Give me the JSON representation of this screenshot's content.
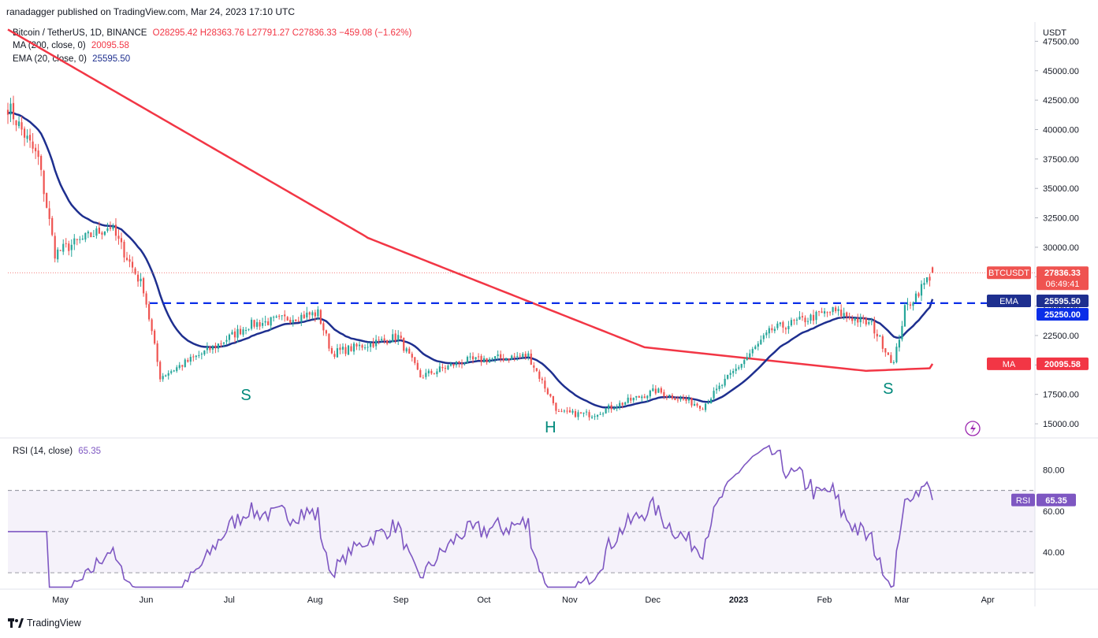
{
  "header": {
    "published": "ranadagger published on TradingView.com, Mar 24, 2023 17:10 UTC"
  },
  "legend": {
    "symbol": "Bitcoin / TetherUS, 1D, BINANCE",
    "ohlc": "O28295.42  H28363.76  L27791.27  C27836.33  −459.08 (−1.62%)",
    "ma_label": "MA (200, close, 0)",
    "ma_value": "20095.58",
    "ema_label": "EMA (20, close, 0)",
    "ema_value": "25595.50",
    "rsi_label": "RSI (14, close)",
    "rsi_value": "65.35"
  },
  "colors": {
    "up": "#26a69a",
    "down": "#ef5350",
    "ma": "#f23645",
    "ema": "#1e2f8f",
    "rsi": "#7e57c2",
    "level": "#0a2ee8",
    "pattern_text": "#00897b"
  },
  "footer": {
    "brand": "TradingView"
  },
  "chart_data": [
    {
      "type": "candlestick",
      "title": "Bitcoin / TetherUS, 1D, BINANCE",
      "y_unit": "USDT",
      "ylim": [
        14000,
        49000
      ],
      "y_ticks": [
        "47500.00",
        "45000.00",
        "42500.00",
        "40000.00",
        "37500.00",
        "35000.00",
        "32500.00",
        "30000.00",
        "27500.00",
        "25000.00",
        "22500.00",
        "20000.00",
        "17500.00",
        "15000.00"
      ],
      "x_ticks": [
        "May",
        "Jun",
        "Jul",
        "Aug",
        "Sep",
        "Oct",
        "Nov",
        "Dec",
        "2023",
        "Feb",
        "Mar",
        "Apr"
      ],
      "price_anchors": [
        {
          "date": "2022-04-24",
          "close": 42000
        },
        {
          "date": "2022-05-05",
          "close": 37500
        },
        {
          "date": "2022-05-11",
          "close": 29500
        },
        {
          "date": "2022-05-31",
          "close": 31800
        },
        {
          "date": "2022-06-12",
          "close": 26500
        },
        {
          "date": "2022-06-18",
          "close": 19000
        },
        {
          "date": "2022-07-08",
          "close": 21600
        },
        {
          "date": "2022-07-20",
          "close": 23400
        },
        {
          "date": "2022-08-14",
          "close": 24400
        },
        {
          "date": "2022-08-19",
          "close": 21000
        },
        {
          "date": "2022-09-12",
          "close": 22400
        },
        {
          "date": "2022-09-20",
          "close": 19000
        },
        {
          "date": "2022-10-05",
          "close": 20300
        },
        {
          "date": "2022-10-29",
          "close": 20800
        },
        {
          "date": "2022-11-09",
          "close": 15900
        },
        {
          "date": "2022-11-21",
          "close": 15800
        },
        {
          "date": "2022-12-14",
          "close": 17800
        },
        {
          "date": "2022-12-31",
          "close": 16500
        },
        {
          "date": "2023-01-13",
          "close": 19900
        },
        {
          "date": "2023-01-25",
          "close": 23000
        },
        {
          "date": "2023-02-16",
          "close": 24600
        },
        {
          "date": "2023-03-02",
          "close": 23400
        },
        {
          "date": "2023-03-10",
          "close": 20100
        },
        {
          "date": "2023-03-14",
          "close": 24700
        },
        {
          "date": "2023-03-24",
          "close": 27836
        }
      ],
      "series": [
        {
          "name": "MA (200, close, 0)",
          "last": 20095.58
        },
        {
          "name": "EMA (20, close, 0)",
          "last": 25595.5
        }
      ],
      "horizontal_level": 25250.0,
      "price_labels": [
        {
          "tag": "BTCUSDT",
          "value": "27836.33",
          "sub": "06:49:41"
        },
        {
          "tag": "EMA",
          "value": "25595.50"
        },
        {
          "tag": "",
          "value": "25250.00"
        },
        {
          "tag": "MA",
          "value": "20095.58"
        }
      ],
      "annotations": [
        "S",
        "H",
        "S"
      ]
    },
    {
      "type": "line",
      "title": "RSI (14, close)",
      "ylim": [
        22,
        94
      ],
      "y_ticks": [
        "80.00",
        "60.00",
        "40.00"
      ],
      "bands": [
        30,
        50,
        70
      ],
      "last": 65.35,
      "label_tag": "RSI"
    }
  ]
}
